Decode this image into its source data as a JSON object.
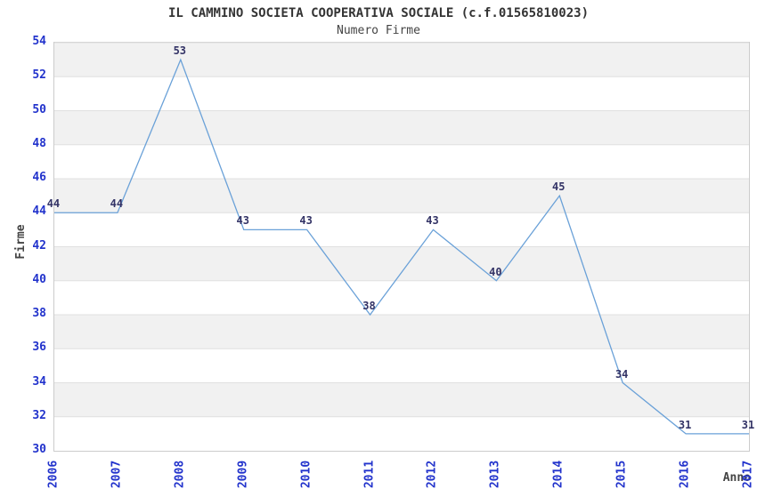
{
  "header": {
    "title": "IL CAMMINO SOCIETA COOPERATIVA SOCIALE (c.f.01565810023)",
    "subtitle": "Numero Firme"
  },
  "chart_data": {
    "type": "line",
    "title": "IL CAMMINO SOCIETA COOPERATIVA SOCIALE (c.f.01565810023)",
    "subtitle": "Numero Firme",
    "xlabel": "Anno",
    "ylabel": "Firme",
    "categories": [
      "2006",
      "2007",
      "2008",
      "2009",
      "2010",
      "2011",
      "2012",
      "2013",
      "2014",
      "2015",
      "2016",
      "2017"
    ],
    "series": [
      {
        "name": "Numero Firme",
        "values": [
          44,
          44,
          53,
          43,
          43,
          38,
          43,
          40,
          45,
          34,
          31,
          31
        ]
      }
    ],
    "ylim": [
      30,
      54
    ],
    "y_tick_step": 2,
    "y_ticks": [
      30,
      32,
      34,
      36,
      38,
      40,
      42,
      44,
      46,
      48,
      50,
      52,
      54
    ],
    "grid": "horizontal-bands",
    "legend_position": "none",
    "data_labels_visible": true
  },
  "colors": {
    "line": "#6aa1d8",
    "tick_label": "#2233cc",
    "point_label": "#333366",
    "band_gray": "#f1f1f1",
    "band_white": "#ffffff",
    "gridline": "#e0e0e0",
    "plot_border": "#cccccc",
    "title_text": "#333333"
  }
}
